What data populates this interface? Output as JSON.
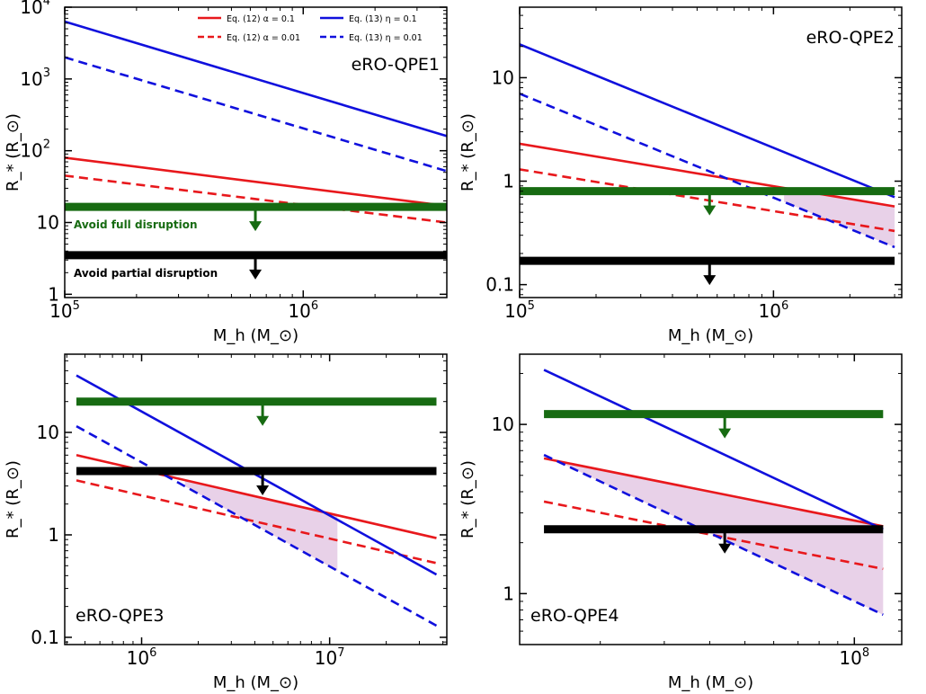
{
  "chart_data": [
    {
      "type": "line",
      "panel_name": "eRO-QPE1",
      "xscale": "log",
      "yscale": "log",
      "xlim": [
        100000,
        4000000
      ],
      "ylim": [
        0.9,
        10000
      ],
      "xlabel": "M_h (M_⊙)",
      "ylabel": "R_* (R_⊙)",
      "x_ticks": [
        {
          "v": 100000,
          "m": "10",
          "e": "5"
        },
        {
          "v": 1000000,
          "m": "10",
          "e": "6"
        }
      ],
      "y_ticks": [
        {
          "v": 1,
          "m": "1",
          "e": ""
        },
        {
          "v": 10,
          "m": "10",
          "e": ""
        },
        {
          "v": 100,
          "m": "10",
          "e": "2"
        },
        {
          "v": 1000,
          "m": "10",
          "e": "3"
        },
        {
          "v": 10000,
          "m": "10",
          "e": "4"
        }
      ],
      "series": [
        {
          "name": "Eq. (12) α = 0.1",
          "color": "#e8181c",
          "dash": false,
          "x": [
            100000,
            4000000
          ],
          "y": [
            80,
            17
          ]
        },
        {
          "name": "Eq. (12) α = 0.01",
          "color": "#e8181c",
          "dash": true,
          "x": [
            100000,
            4000000
          ],
          "y": [
            45,
            10
          ]
        },
        {
          "name": "Eq. (13) η = 0.1",
          "color": "#1010dd",
          "dash": false,
          "x": [
            100000,
            4000000
          ],
          "y": [
            6300,
            160
          ]
        },
        {
          "name": "Eq. (13) η = 0.01",
          "color": "#1010dd",
          "dash": true,
          "x": [
            100000,
            4000000
          ],
          "y": [
            2000,
            52
          ]
        }
      ],
      "hlines": [
        {
          "y": 16.5,
          "color": "#176b12",
          "x": [
            100000,
            4000000
          ],
          "arrow_x": 630000,
          "label": "Avoid full disruption"
        },
        {
          "y": 3.5,
          "color": "#000000",
          "x": [
            100000,
            4000000
          ],
          "arrow_x": 630000,
          "label": "Avoid partial disruption"
        }
      ],
      "shade": null,
      "show_legend": true
    },
    {
      "type": "line",
      "panel_name": "eRO-QPE2",
      "xscale": "log",
      "yscale": "log",
      "xlim": [
        100000,
        3200000
      ],
      "ylim": [
        0.075,
        48
      ],
      "xlabel": "M_h (M_⊙)",
      "ylabel": "R_* (R_⊙)",
      "x_ticks": [
        {
          "v": 100000,
          "m": "10",
          "e": "5"
        },
        {
          "v": 1000000,
          "m": "10",
          "e": "6"
        }
      ],
      "y_ticks": [
        {
          "v": 0.1,
          "m": "0.1",
          "e": ""
        },
        {
          "v": 1,
          "m": "1",
          "e": ""
        },
        {
          "v": 10,
          "m": "10",
          "e": ""
        }
      ],
      "series": [
        {
          "name": "Eq. (12) α = 0.1",
          "color": "#e8181c",
          "dash": false,
          "x": [
            100000,
            3000000
          ],
          "y": [
            2.3,
            0.57
          ]
        },
        {
          "name": "Eq. (12) α = 0.01",
          "color": "#e8181c",
          "dash": true,
          "x": [
            100000,
            3000000
          ],
          "y": [
            1.3,
            0.33
          ]
        },
        {
          "name": "Eq. (13) η = 0.1",
          "color": "#1010dd",
          "dash": false,
          "x": [
            100000,
            3000000
          ],
          "y": [
            21,
            0.7
          ]
        },
        {
          "name": "Eq. (13) η = 0.01",
          "color": "#1010dd",
          "dash": true,
          "x": [
            100000,
            3000000
          ],
          "y": [
            7,
            0.23
          ]
        }
      ],
      "hlines": [
        {
          "y": 0.8,
          "color": "#176b12",
          "x": [
            100000,
            3000000
          ],
          "arrow_x": 560000,
          "label": ""
        },
        {
          "y": 0.17,
          "color": "#000000",
          "x": [
            100000,
            3000000
          ],
          "arrow_x": 560000,
          "label": ""
        }
      ],
      "shade": {
        "x0": 1100000,
        "x1": 3000000,
        "lower_series": 3,
        "lower_floor": 0.17,
        "upper_cap": 0.8,
        "upper_series": 0
      },
      "show_legend": false
    },
    {
      "type": "line",
      "panel_name": "eRO-QPE3",
      "xscale": "log",
      "yscale": "log",
      "xlim": [
        390000,
        42000000
      ],
      "ylim": [
        0.085,
        58
      ],
      "xlabel": "M_h (M_⊙)",
      "ylabel": "R_* (R_⊙)",
      "x_ticks": [
        {
          "v": 1000000,
          "m": "10",
          "e": "6"
        },
        {
          "v": 10000000,
          "m": "10",
          "e": "7"
        }
      ],
      "y_ticks": [
        {
          "v": 0.1,
          "m": "0.1",
          "e": ""
        },
        {
          "v": 1,
          "m": "1",
          "e": ""
        },
        {
          "v": 10,
          "m": "10",
          "e": ""
        }
      ],
      "series": [
        {
          "name": "Eq. (12) α = 0.1",
          "color": "#e8181c",
          "dash": false,
          "x": [
            450000,
            37000000
          ],
          "y": [
            6,
            0.93
          ]
        },
        {
          "name": "Eq. (12) α = 0.01",
          "color": "#e8181c",
          "dash": true,
          "x": [
            450000,
            37000000
          ],
          "y": [
            3.4,
            0.53
          ]
        },
        {
          "name": "Eq. (13) η = 0.1",
          "color": "#1010dd",
          "dash": false,
          "x": [
            450000,
            37000000
          ],
          "y": [
            36,
            0.41
          ]
        },
        {
          "name": "Eq. (13) η = 0.01",
          "color": "#1010dd",
          "dash": true,
          "x": [
            450000,
            37000000
          ],
          "y": [
            11.5,
            0.13
          ]
        }
      ],
      "hlines": [
        {
          "y": 20,
          "color": "#176b12",
          "x": [
            450000,
            37000000
          ],
          "arrow_x": 4400000,
          "label": ""
        },
        {
          "y": 4.2,
          "color": "#000000",
          "x": [
            450000,
            37000000
          ],
          "arrow_x": 4400000,
          "label": ""
        }
      ],
      "shade": {
        "x0": 1700000,
        "x1": 11000000,
        "lower_series": 3,
        "lower_floor": 0,
        "upper_cap": 4.2,
        "upper_series": 0
      },
      "show_legend": false
    },
    {
      "type": "line",
      "panel_name": "eRO-QPE4",
      "xscale": "log",
      "yscale": "log",
      "xlim": [
        12000000,
        135000000
      ],
      "ylim": [
        0.5,
        26
      ],
      "xlabel": "M_h (M_⊙)",
      "ylabel": "R_* (R_⊙)",
      "x_ticks": [
        {
          "v": 100000000,
          "m": "10",
          "e": "8"
        }
      ],
      "y_ticks": [
        {
          "v": 1,
          "m": "1",
          "e": ""
        },
        {
          "v": 10,
          "m": "10",
          "e": ""
        }
      ],
      "series": [
        {
          "name": "Eq. (12) α = 0.1",
          "color": "#e8181c",
          "dash": false,
          "x": [
            14000000,
            120000000
          ],
          "y": [
            6.3,
            2.5
          ]
        },
        {
          "name": "Eq. (12) α = 0.01",
          "color": "#e8181c",
          "dash": true,
          "x": [
            14000000,
            120000000
          ],
          "y": [
            3.5,
            1.4
          ]
        },
        {
          "name": "Eq. (13) η = 0.1",
          "color": "#1010dd",
          "dash": false,
          "x": [
            14000000,
            120000000
          ],
          "y": [
            21,
            2.4
          ]
        },
        {
          "name": "Eq. (13) η = 0.01",
          "color": "#1010dd",
          "dash": true,
          "x": [
            14000000,
            120000000
          ],
          "y": [
            6.6,
            0.75
          ]
        }
      ],
      "hlines": [
        {
          "y": 11.5,
          "color": "#176b12",
          "x": [
            14000000,
            120000000
          ],
          "arrow_x": 44000000,
          "label": ""
        },
        {
          "y": 2.4,
          "color": "#000000",
          "x": [
            14000000,
            120000000
          ],
          "arrow_x": 44000000,
          "label": ""
        }
      ],
      "shade": {
        "x0": 14000000,
        "x1": 120000000,
        "lower_series": 3,
        "lower_floor": 0,
        "upper_cap": 1000,
        "upper_series": 0
      },
      "show_legend": false
    }
  ],
  "legend": {
    "entries": [
      {
        "label": "Eq. (12) α = 0.1",
        "color": "#e8181c",
        "dash": false
      },
      {
        "label": "Eq. (13) η = 0.1",
        "color": "#1010dd",
        "dash": false
      },
      {
        "label": "Eq. (12) α = 0.01",
        "color": "#e8181c",
        "dash": true
      },
      {
        "label": "Eq. (13) η = 0.01",
        "color": "#1010dd",
        "dash": true
      }
    ]
  },
  "colors": {
    "shade": "#cc99cc",
    "axis": "#000000"
  }
}
